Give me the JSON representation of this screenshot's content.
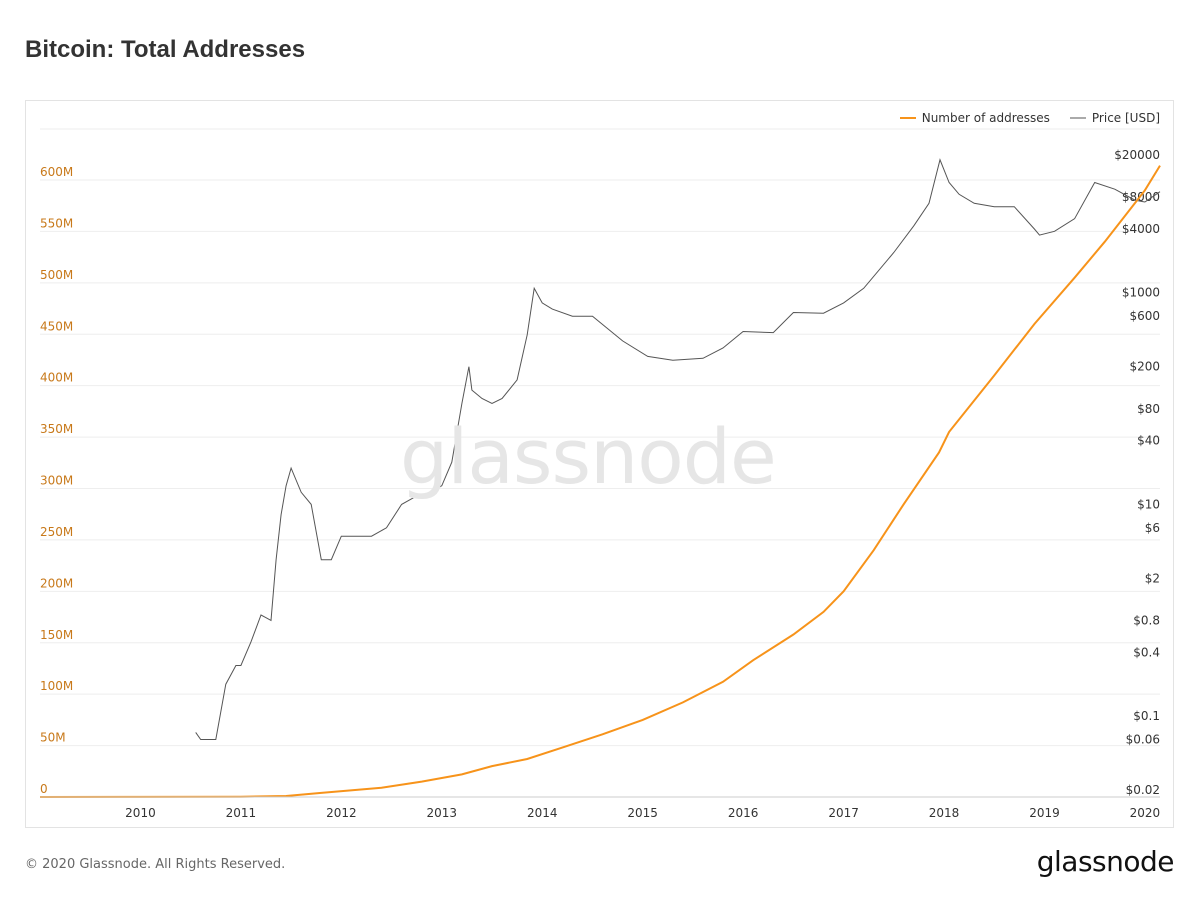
{
  "title": "Bitcoin: Total Addresses",
  "watermark": "glassnode",
  "footer": "© 2020 Glassnode. All Rights Reserved.",
  "logo": "glassnode",
  "colors": {
    "addresses": "#f7931a",
    "price": "#555555",
    "left_axis": "#c8791a",
    "grid": "#eeeeee"
  },
  "chart_data": {
    "type": "line",
    "title": "Bitcoin: Total Addresses",
    "legend": [
      "Number of addresses",
      "Price [USD]"
    ],
    "legend_position": "top-right",
    "grid": true,
    "x_ticks": [
      "2010",
      "2011",
      "2012",
      "2013",
      "2014",
      "2015",
      "2016",
      "2017",
      "2018",
      "2019",
      "2020"
    ],
    "x_range": [
      2009.0,
      2020.15
    ],
    "y_left": {
      "scale": "linear",
      "range": [
        0,
        600000000
      ],
      "ticks": [
        {
          "label": "0",
          "value": 0
        },
        {
          "label": "50M",
          "value": 50000000
        },
        {
          "label": "100M",
          "value": 100000000
        },
        {
          "label": "150M",
          "value": 150000000
        },
        {
          "label": "200M",
          "value": 200000000
        },
        {
          "label": "250M",
          "value": 250000000
        },
        {
          "label": "300M",
          "value": 300000000
        },
        {
          "label": "350M",
          "value": 350000000
        },
        {
          "label": "400M",
          "value": 400000000
        },
        {
          "label": "450M",
          "value": 450000000
        },
        {
          "label": "500M",
          "value": 500000000
        },
        {
          "label": "550M",
          "value": 550000000
        },
        {
          "label": "600M",
          "value": 600000000
        }
      ]
    },
    "y_right": {
      "scale": "log",
      "range": [
        0.02,
        20000
      ],
      "ticks": [
        {
          "label": "$20000",
          "value": 20000
        },
        {
          "label": "$8000",
          "value": 8000
        },
        {
          "label": "$4000",
          "value": 4000
        },
        {
          "label": "$1000",
          "value": 1000
        },
        {
          "label": "$600",
          "value": 600
        },
        {
          "label": "$200",
          "value": 200
        },
        {
          "label": "$80",
          "value": 80
        },
        {
          "label": "$40",
          "value": 40
        },
        {
          "label": "$10",
          "value": 10
        },
        {
          "label": "$6",
          "value": 6
        },
        {
          "label": "$2",
          "value": 2
        },
        {
          "label": "$0.8",
          "value": 0.8
        },
        {
          "label": "$0.4",
          "value": 0.4
        },
        {
          "label": "$0.1",
          "value": 0.1
        },
        {
          "label": "$0.06",
          "value": 0.06
        },
        {
          "label": "$0.02",
          "value": 0.02
        }
      ]
    },
    "series": [
      {
        "name": "Number of addresses",
        "axis": "left",
        "x": [
          2009.0,
          2010.0,
          2011.0,
          2011.45,
          2011.8,
          2012.4,
          2012.8,
          2013.2,
          2013.5,
          2013.85,
          2014.2,
          2014.6,
          2015.0,
          2015.4,
          2015.8,
          2016.1,
          2016.5,
          2016.8,
          2017.0,
          2017.3,
          2017.6,
          2017.95,
          2018.05,
          2018.5,
          2018.9,
          2019.3,
          2019.6,
          2020.0,
          2020.15
        ],
        "y": [
          0,
          50000,
          300000,
          1000000,
          4000000,
          9000000,
          15000000,
          22000000,
          30000000,
          37000000,
          48000000,
          61000000,
          75000000,
          92000000,
          112000000,
          133000000,
          158000000,
          180000000,
          200000000,
          240000000,
          285000000,
          335000000,
          355000000,
          410000000,
          460000000,
          505000000,
          540000000,
          590000000,
          614000000
        ]
      },
      {
        "name": "Price [USD]",
        "axis": "right",
        "x": [
          2010.55,
          2010.6,
          2010.75,
          2010.85,
          2010.95,
          2011.0,
          2011.1,
          2011.2,
          2011.25,
          2011.3,
          2011.35,
          2011.4,
          2011.45,
          2011.5,
          2011.6,
          2011.7,
          2011.8,
          2011.9,
          2012.0,
          2012.15,
          2012.3,
          2012.45,
          2012.6,
          2012.75,
          2012.9,
          2013.0,
          2013.1,
          2013.2,
          2013.27,
          2013.3,
          2013.4,
          2013.5,
          2013.6,
          2013.75,
          2013.85,
          2013.92,
          2014.0,
          2014.1,
          2014.3,
          2014.5,
          2014.8,
          2015.05,
          2015.3,
          2015.6,
          2015.8,
          2016.0,
          2016.3,
          2016.5,
          2016.8,
          2017.0,
          2017.2,
          2017.5,
          2017.7,
          2017.85,
          2017.96,
          2018.05,
          2018.15,
          2018.3,
          2018.5,
          2018.7,
          2018.9,
          2018.95,
          2019.1,
          2019.3,
          2019.5,
          2019.7,
          2019.9,
          2020.0,
          2020.15
        ],
        "y": [
          0.07,
          0.06,
          0.06,
          0.2,
          0.3,
          0.3,
          0.5,
          0.9,
          0.85,
          0.8,
          3,
          8,
          15,
          22,
          13,
          10,
          3,
          3,
          5,
          5,
          5,
          6,
          10,
          12,
          13,
          15,
          25,
          90,
          200,
          120,
          100,
          90,
          100,
          150,
          400,
          1100,
          800,
          700,
          600,
          600,
          350,
          250,
          230,
          240,
          300,
          430,
          420,
          650,
          640,
          800,
          1100,
          2400,
          4300,
          7000,
          18000,
          11000,
          8500,
          7000,
          6500,
          6500,
          4000,
          3500,
          3800,
          5000,
          11000,
          9500,
          7500,
          7200,
          9000
        ]
      }
    ]
  }
}
